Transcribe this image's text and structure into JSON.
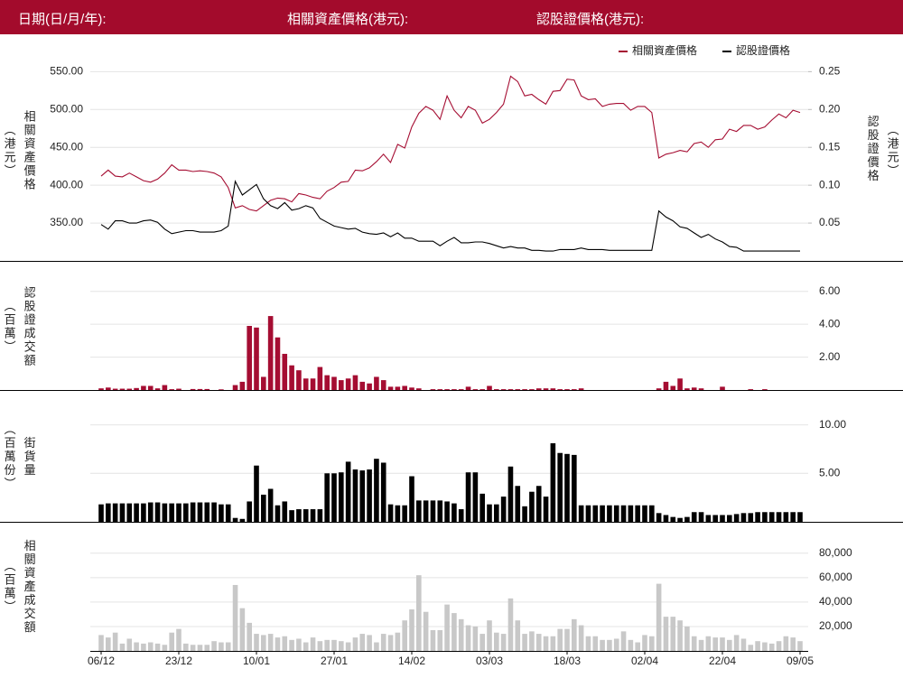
{
  "header": {
    "labels": [
      "日期(日/月/年):",
      "相關資產價格(港元):",
      "認股證價格(港元):"
    ]
  },
  "chart_data": [
    {
      "type": "line",
      "ylabel": "相關資產價格",
      "ylabel_unit": "（港元）",
      "ylabel_color": "#a50d32",
      "y2label": "認股證價格",
      "y2label_unit": "（港元）",
      "ylim": [
        300,
        585
      ],
      "yticks": [
        {
          "value": 350,
          "label": "350.00"
        },
        {
          "value": 400,
          "label": "400.00"
        },
        {
          "value": 450,
          "label": "450.00"
        },
        {
          "value": 500,
          "label": "500.00"
        },
        {
          "value": 550,
          "label": "550.00"
        }
      ],
      "y2lim": [
        0,
        0.285
      ],
      "y2ticks": [
        {
          "value": 0.05,
          "label": "0.05"
        },
        {
          "value": 0.1,
          "label": "0.10"
        },
        {
          "value": 0.15,
          "label": "0.15"
        },
        {
          "value": 0.2,
          "label": "0.20"
        },
        {
          "value": 0.25,
          "label": "0.25"
        }
      ],
      "grid": true,
      "legend": "upper right",
      "series": [
        {
          "name": "相關資產價格",
          "color": "#a50d32",
          "values": [
            412,
            420,
            412,
            411,
            416,
            411,
            406,
            404,
            408,
            416,
            427,
            420,
            420,
            418,
            419,
            418,
            416,
            411,
            397,
            370,
            373,
            368,
            366,
            373,
            380,
            383,
            382,
            378,
            389,
            387,
            384,
            382,
            392,
            397,
            404,
            405,
            420,
            419,
            423,
            431,
            441,
            430,
            454,
            449,
            477,
            495,
            504,
            499,
            487,
            518,
            499,
            489,
            504,
            499,
            482,
            487,
            496,
            507,
            544,
            537,
            518,
            520,
            513,
            507,
            524,
            525,
            540,
            539,
            518,
            513,
            514,
            504,
            507,
            508,
            508,
            499,
            504,
            504,
            496,
            436,
            441,
            443,
            446,
            444,
            455,
            457,
            450,
            460,
            461,
            474,
            471,
            479,
            479,
            474,
            477,
            486,
            494,
            489,
            499,
            496
          ]
        },
        {
          "name": "認股證價格",
          "color": "#000000",
          "axis": "y2",
          "values": [
            0.048,
            0.042,
            0.053,
            0.053,
            0.05,
            0.05,
            0.053,
            0.054,
            0.051,
            0.042,
            0.036,
            0.038,
            0.04,
            0.04,
            0.038,
            0.038,
            0.038,
            0.04,
            0.046,
            0.105,
            0.087,
            0.094,
            0.101,
            0.082,
            0.073,
            0.069,
            0.077,
            0.067,
            0.069,
            0.073,
            0.07,
            0.056,
            0.051,
            0.046,
            0.044,
            0.042,
            0.043,
            0.038,
            0.036,
            0.035,
            0.037,
            0.032,
            0.037,
            0.03,
            0.03,
            0.026,
            0.026,
            0.026,
            0.02,
            0.026,
            0.031,
            0.024,
            0.024,
            0.025,
            0.025,
            0.023,
            0.02,
            0.017,
            0.019,
            0.017,
            0.017,
            0.014,
            0.014,
            0.013,
            0.013,
            0.015,
            0.015,
            0.015,
            0.017,
            0.015,
            0.015,
            0.015,
            0.014,
            0.014,
            0.014,
            0.014,
            0.014,
            0.014,
            0.014,
            0.066,
            0.058,
            0.053,
            0.045,
            0.043,
            0.037,
            0.031,
            0.035,
            0.029,
            0.025,
            0.019,
            0.018,
            0.013,
            0.013,
            0.013,
            0.013,
            0.013,
            0.013,
            0.013,
            0.013,
            0.013
          ]
        }
      ]
    },
    {
      "type": "bar",
      "ylabel": "認股證成交額",
      "ylabel_unit": "（百萬）",
      "color": "#a50d32",
      "ylim": [
        0,
        7.8
      ],
      "yticks": [
        {
          "value": 2,
          "label": "2.00"
        },
        {
          "value": 4,
          "label": "4.00"
        },
        {
          "value": 6,
          "label": "6.00"
        }
      ],
      "grid": true,
      "values": [
        0.1,
        0.15,
        0.08,
        0.08,
        0.08,
        0.12,
        0.25,
        0.25,
        0.1,
        0.3,
        0.05,
        0.08,
        0,
        0.06,
        0.06,
        0.06,
        0,
        0.04,
        0,
        0.3,
        0.5,
        3.9,
        3.8,
        0.8,
        4.5,
        3.2,
        2.2,
        1.5,
        1.2,
        0.7,
        0.7,
        1.4,
        0.9,
        0.8,
        0.6,
        0.7,
        0.9,
        0.5,
        0.4,
        0.8,
        0.6,
        0.2,
        0.2,
        0.25,
        0.15,
        0.1,
        0,
        0.05,
        0.05,
        0.05,
        0.05,
        0.05,
        0.2,
        0.05,
        0.05,
        0.25,
        0.05,
        0.05,
        0.05,
        0.05,
        0.05,
        0.05,
        0.1,
        0.1,
        0.1,
        0.05,
        0.05,
        0.05,
        0.1,
        0,
        0,
        0,
        0,
        0,
        0,
        0,
        0,
        0,
        0,
        0.1,
        0.5,
        0.25,
        0.7,
        0.1,
        0.15,
        0.1,
        0,
        0,
        0.2,
        0,
        0,
        0,
        0.05,
        0,
        0.05,
        0,
        0,
        0,
        0,
        0
      ]
    },
    {
      "type": "bar",
      "ylabel": "街貨量",
      "ylabel_unit": "（百萬份）",
      "color": "#000000",
      "ylim": [
        0,
        13.5
      ],
      "yticks": [
        {
          "value": 5,
          "label": "5.00"
        },
        {
          "value": 10,
          "label": "10.00"
        }
      ],
      "grid": true,
      "values": [
        1.8,
        1.9,
        1.9,
        1.9,
        1.9,
        1.9,
        1.9,
        2.0,
        2.0,
        1.9,
        1.9,
        1.9,
        1.9,
        2.0,
        2.0,
        2.0,
        2.0,
        1.8,
        1.8,
        0.4,
        0.3,
        2.1,
        5.8,
        2.8,
        3.4,
        1.7,
        2.1,
        1.2,
        1.3,
        1.3,
        1.3,
        1.3,
        5.0,
        5.0,
        5.1,
        6.2,
        5.4,
        5.3,
        5.4,
        6.5,
        6.1,
        1.8,
        1.7,
        1.7,
        4.7,
        2.2,
        2.2,
        2.2,
        2.2,
        2.1,
        1.9,
        1.3,
        5.1,
        5.1,
        2.9,
        1.8,
        1.8,
        2.6,
        5.7,
        3.7,
        1.6,
        3.1,
        3.7,
        2.6,
        8.1,
        7.1,
        7.0,
        6.9,
        1.7,
        1.7,
        1.7,
        1.7,
        1.7,
        1.7,
        1.7,
        1.7,
        1.7,
        1.7,
        1.7,
        0.9,
        0.7,
        0.5,
        0.4,
        0.5,
        1.0,
        1.0,
        0.7,
        0.7,
        0.7,
        0.7,
        0.8,
        0.9,
        0.9,
        1.0,
        1.0,
        1.0,
        1.0,
        1.0,
        1.0,
        1.0
      ]
    },
    {
      "type": "bar",
      "ylabel": "相關資產成交額",
      "ylabel_unit": "（百萬）",
      "color": "#c8c8c8",
      "ylim": [
        0,
        105000
      ],
      "yticks": [
        {
          "value": 20000,
          "label": "20,000"
        },
        {
          "value": 40000,
          "label": "40,000"
        },
        {
          "value": 60000,
          "label": "60,000"
        },
        {
          "value": 80000,
          "label": "80,000"
        }
      ],
      "grid": true,
      "categories": [
        "06/12",
        null,
        null,
        null,
        null,
        null,
        null,
        null,
        null,
        null,
        null,
        "23/12",
        null,
        null,
        null,
        null,
        null,
        null,
        null,
        null,
        null,
        null,
        "10/01",
        null,
        null,
        null,
        null,
        null,
        null,
        null,
        null,
        null,
        null,
        "27/01",
        null,
        null,
        null,
        null,
        null,
        null,
        null,
        null,
        null,
        null,
        "14/02",
        null,
        null,
        null,
        null,
        null,
        null,
        null,
        null,
        null,
        null,
        "03/03",
        null,
        null,
        null,
        null,
        null,
        null,
        null,
        null,
        null,
        null,
        "18/03",
        null,
        null,
        null,
        null,
        null,
        null,
        null,
        null,
        null,
        null,
        "02/04",
        null,
        null,
        null,
        null,
        null,
        null,
        null,
        null,
        null,
        null,
        "22/04",
        null,
        null,
        null,
        null,
        null,
        null,
        null,
        null,
        null,
        null,
        "09/05"
      ],
      "values": [
        13000,
        11000,
        15000,
        6000,
        10000,
        7000,
        6000,
        7000,
        6000,
        5000,
        15000,
        18000,
        6000,
        5000,
        5000,
        5000,
        8000,
        7000,
        7000,
        54000,
        35000,
        23000,
        14000,
        13000,
        14000,
        11000,
        12000,
        9000,
        10000,
        7000,
        11000,
        8000,
        9000,
        9000,
        8000,
        7000,
        11000,
        14000,
        13000,
        7000,
        14000,
        13000,
        15000,
        25000,
        34000,
        62000,
        32000,
        17000,
        17000,
        38000,
        31000,
        26000,
        21000,
        20000,
        14000,
        25000,
        15000,
        14000,
        43000,
        25000,
        14000,
        16000,
        14000,
        12000,
        12000,
        18000,
        18000,
        26000,
        21000,
        12000,
        12000,
        9000,
        9000,
        10000,
        16000,
        9000,
        7000,
        13000,
        12000,
        55000,
        28000,
        28000,
        25000,
        20000,
        12000,
        9000,
        12000,
        11000,
        11000,
        9000,
        13000,
        10000,
        5000,
        8000,
        7000,
        6000,
        8000,
        12000,
        11000,
        8000
      ]
    }
  ]
}
